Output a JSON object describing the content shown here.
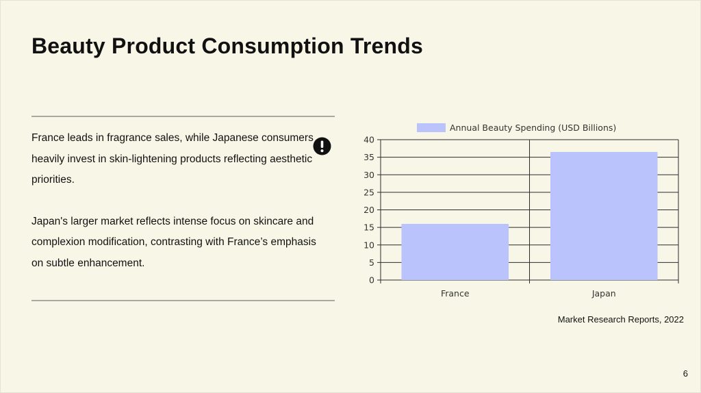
{
  "slide": {
    "title": "Beauty Product Consumption Trends",
    "paragraphs": [
      "France leads in fragrance sales, while Japanese consumers heavily invest in skin-lightening products reflecting aesthetic priorities.",
      "Japan's larger market reflects intense focus on skincare and complexion modification, contrasting with France’s emphasis on subtle enhancement."
    ],
    "icon": "exclamation-circle-icon",
    "source": "Market Research Reports, 2022",
    "page_number": "6"
  },
  "colors": {
    "background": "#f8f6e6",
    "bar_fill": "#bbc3fd",
    "text": "#111111"
  },
  "chart_data": {
    "type": "bar",
    "categories": [
      "France",
      "Japan"
    ],
    "series": [
      {
        "name": "Annual Beauty Spending (USD Billions)",
        "values": [
          16,
          36.5
        ]
      }
    ],
    "ylim": [
      0,
      40
    ],
    "yticks": [
      0,
      5,
      10,
      15,
      20,
      25,
      30,
      35,
      40
    ],
    "xlabel": "",
    "ylabel": "",
    "legend": "top",
    "grid": true
  }
}
